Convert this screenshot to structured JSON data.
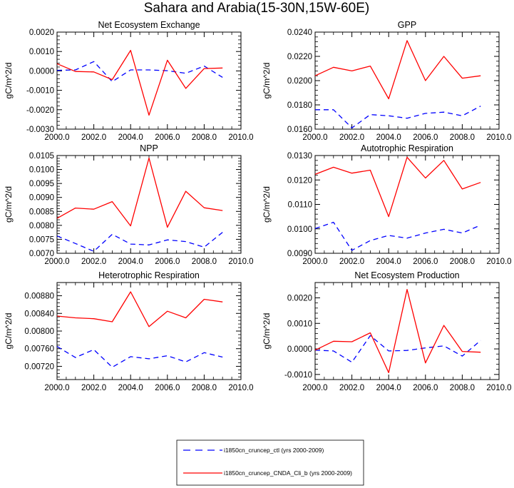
{
  "figure": {
    "title": "Sahara and Arabia(15-30N,15W-60E)"
  },
  "legend": {
    "entries": [
      {
        "label": "i1850cn_cruncep_ctl (yrs 2000-2009)",
        "color": "#0000ff",
        "dash": true
      },
      {
        "label": "i1850cn_cruncep_CNDA_Cli_b (yrs 2000-2009)",
        "color": "#ff0000",
        "dash": false
      }
    ]
  },
  "chart_data": [
    {
      "type": "line",
      "title": "Net Ecosystem Exchange",
      "ylabel": "gC/m^2/d",
      "xlim": [
        2000,
        2010
      ],
      "xticks": [
        "2000.0",
        "2002.0",
        "2004.0",
        "2006.0",
        "2008.0",
        "2010.0"
      ],
      "ylim": [
        -0.003,
        0.002
      ],
      "yticks": [
        "-0.0030",
        "-0.0020",
        "-0.0010",
        "0.0000",
        "0.0010",
        "0.0020"
      ],
      "x": [
        2000,
        2001,
        2002,
        2003,
        2004,
        2005,
        2006,
        2007,
        2008,
        2009
      ],
      "series": [
        {
          "name": "i1850cn_cruncep_ctl (yrs 2000-2009)",
          "color": "#0000ff",
          "dash": true,
          "values": [
            3e-05,
            5e-05,
            0.00048,
            -0.00055,
            5e-05,
            5e-05,
            1e-05,
            -0.00012,
            0.00025,
            -0.00033
          ]
        },
        {
          "name": "i1850cn_cruncep_CNDA_Cli_b (yrs 2000-2009)",
          "color": "#ff0000",
          "dash": false,
          "values": [
            0.00037,
            -3e-05,
            -5e-05,
            -0.00045,
            0.00106,
            -0.00228,
            0.00055,
            -0.0009,
            0.00012,
            0.00015
          ]
        }
      ]
    },
    {
      "type": "line",
      "title": "GPP",
      "ylabel": "gC/m^2/d",
      "xlim": [
        2000,
        2010
      ],
      "xticks": [
        "2000.0",
        "2002.0",
        "2004.0",
        "2006.0",
        "2008.0",
        "2010.0"
      ],
      "ylim": [
        0.016,
        0.024
      ],
      "yticks": [
        "0.0160",
        "0.0180",
        "0.0200",
        "0.0220",
        "0.0240"
      ],
      "x": [
        2000,
        2001,
        2002,
        2003,
        2004,
        2005,
        2006,
        2007,
        2008,
        2009
      ],
      "series": [
        {
          "name": "i1850cn_cruncep_ctl (yrs 2000-2009)",
          "color": "#0000ff",
          "dash": true,
          "values": [
            0.0176,
            0.0176,
            0.0161,
            0.0172,
            0.0171,
            0.0169,
            0.0173,
            0.0174,
            0.0171,
            0.0179
          ]
        },
        {
          "name": "i1850cn_cruncep_CNDA_Cli_b (yrs 2000-2009)",
          "color": "#ff0000",
          "dash": false,
          "values": [
            0.0204,
            0.0211,
            0.0208,
            0.0212,
            0.0185,
            0.0233,
            0.02,
            0.022,
            0.0202,
            0.0204
          ]
        }
      ]
    },
    {
      "type": "line",
      "title": "NPP",
      "ylabel": "gC/m^2/d",
      "xlim": [
        2000,
        2010
      ],
      "xticks": [
        "2000.0",
        "2002.0",
        "2004.0",
        "2006.0",
        "2008.0",
        "2010.0"
      ],
      "ylim": [
        0.007,
        0.0105
      ],
      "yticks": [
        "0.0070",
        "0.0075",
        "0.0080",
        "0.0085",
        "0.0090",
        "0.0095",
        "0.0100",
        "0.0105"
      ],
      "x": [
        2000,
        2001,
        2002,
        2003,
        2004,
        2005,
        2006,
        2007,
        2008,
        2009
      ],
      "series": [
        {
          "name": "i1850cn_cruncep_ctl (yrs 2000-2009)",
          "color": "#0000ff",
          "dash": true,
          "values": [
            0.00762,
            0.00735,
            0.00707,
            0.00768,
            0.00733,
            0.0073,
            0.00748,
            0.00742,
            0.00722,
            0.00775
          ]
        },
        {
          "name": "i1850cn_cruncep_CNDA_Cli_b (yrs 2000-2009)",
          "color": "#ff0000",
          "dash": false,
          "values": [
            0.00825,
            0.00862,
            0.00858,
            0.00885,
            0.00798,
            0.01041,
            0.00793,
            0.00922,
            0.00863,
            0.00853
          ]
        }
      ]
    },
    {
      "type": "line",
      "title": "Autotrophic Respiration",
      "ylabel": "gC/m^2/d",
      "xlim": [
        2000,
        2010
      ],
      "xticks": [
        "2000.0",
        "2002.0",
        "2004.0",
        "2006.0",
        "2008.0",
        "2010.0"
      ],
      "ylim": [
        0.009,
        0.013
      ],
      "yticks": [
        "0.0090",
        "0.0100",
        "0.0110",
        "0.0120",
        "0.0130"
      ],
      "x": [
        2000,
        2001,
        2002,
        2003,
        2004,
        2005,
        2006,
        2007,
        2008,
        2009
      ],
      "series": [
        {
          "name": "i1850cn_cruncep_ctl (yrs 2000-2009)",
          "color": "#0000ff",
          "dash": true,
          "values": [
            0.01001,
            0.01027,
            0.00912,
            0.00952,
            0.00973,
            0.00962,
            0.00983,
            0.00998,
            0.00983,
            0.01015
          ]
        },
        {
          "name": "i1850cn_cruncep_CNDA_Cli_b (yrs 2000-2009)",
          "color": "#ff0000",
          "dash": false,
          "values": [
            0.01223,
            0.01252,
            0.01228,
            0.0124,
            0.0105,
            0.01293,
            0.01208,
            0.0128,
            0.01163,
            0.0119
          ]
        }
      ]
    },
    {
      "type": "line",
      "title": "Heterotrophic Respiration",
      "ylabel": "gC/m^2/d",
      "xlim": [
        2000,
        2010
      ],
      "xticks": [
        "2000.0",
        "2002.0",
        "2004.0",
        "2006.0",
        "2008.0",
        "2010.0"
      ],
      "ylim": [
        0.0069,
        0.0091
      ],
      "yticks": [
        "0.00720",
        "0.00760",
        "0.00800",
        "0.00840",
        "0.00880"
      ],
      "x": [
        2000,
        2001,
        2002,
        2003,
        2004,
        2005,
        2006,
        2007,
        2008,
        2009
      ],
      "series": [
        {
          "name": "i1850cn_cruncep_ctl (yrs 2000-2009)",
          "color": "#0000ff",
          "dash": true,
          "values": [
            0.00765,
            0.0074,
            0.00758,
            0.00718,
            0.00742,
            0.00737,
            0.00744,
            0.0073,
            0.00751,
            0.00741
          ]
        },
        {
          "name": "i1850cn_cruncep_CNDA_Cli_b (yrs 2000-2009)",
          "color": "#ff0000",
          "dash": false,
          "values": [
            0.00834,
            0.0083,
            0.00828,
            0.00821,
            0.00889,
            0.0081,
            0.00845,
            0.0083,
            0.00872,
            0.00866
          ]
        }
      ]
    },
    {
      "type": "line",
      "title": "Net Ecosystem Production",
      "ylabel": "gC/m^2/d",
      "xlim": [
        2000,
        2010
      ],
      "xticks": [
        "2000.0",
        "2002.0",
        "2004.0",
        "2006.0",
        "2008.0",
        "2010.0"
      ],
      "ylim": [
        -0.0012,
        0.0026
      ],
      "yticks": [
        "-0.0010",
        "0.0000",
        "0.0010",
        "0.0020"
      ],
      "x": [
        2000,
        2001,
        2002,
        2003,
        2004,
        2005,
        2006,
        2007,
        2008,
        2009
      ],
      "series": [
        {
          "name": "i1850cn_cruncep_ctl (yrs 2000-2009)",
          "color": "#0000ff",
          "dash": true,
          "values": [
            -5e-05,
            -8e-05,
            -0.00052,
            0.00052,
            -8e-05,
            -6e-05,
            4e-05,
            0.00012,
            -0.00028,
            0.00033
          ]
        },
        {
          "name": "i1850cn_cruncep_CNDA_Cli_b (yrs 2000-2009)",
          "color": "#ff0000",
          "dash": false,
          "values": [
            -5e-05,
            0.0003,
            0.00028,
            0.00063,
            -0.00093,
            0.00233,
            -0.00055,
            0.00092,
            -0.0001,
            -0.00013
          ]
        }
      ]
    }
  ]
}
